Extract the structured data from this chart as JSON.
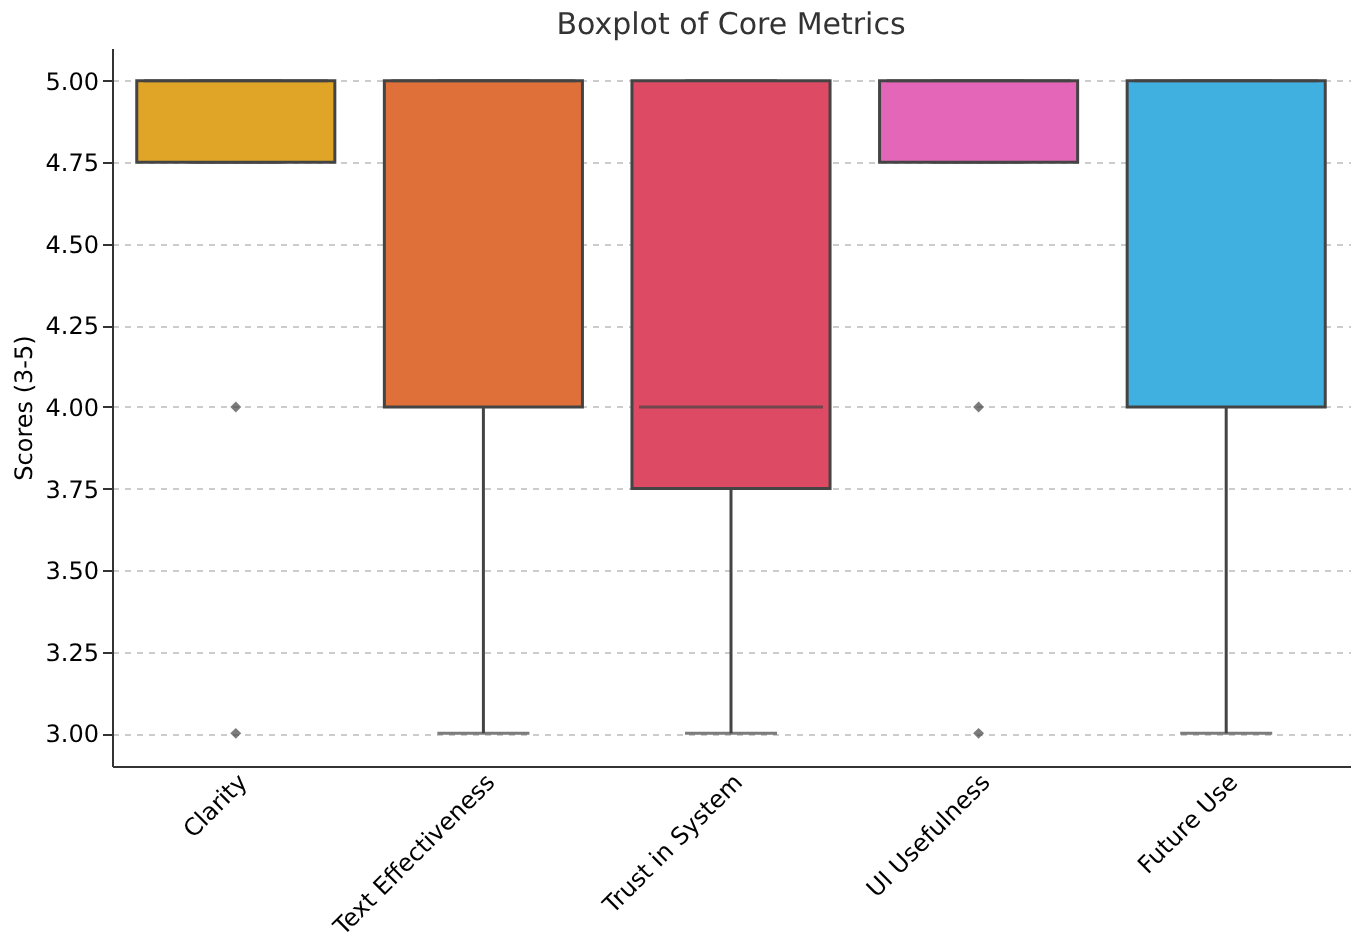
{
  "chart_data": {
    "type": "box",
    "title": "Boxplot of Core Metrics",
    "ylabel": "Scores (3-5)",
    "categories": [
      "Clarity",
      "Text Effectiveness",
      "Trust in System",
      "UI Usefulness",
      "Future Use"
    ],
    "boxes": [
      {
        "low": 4.75,
        "q1": 4.75,
        "median": 5,
        "q3": 5,
        "high": 5,
        "outliers": [
          4,
          3
        ]
      },
      {
        "low": 3,
        "q1": 4,
        "median": 5,
        "q3": 5,
        "high": 5
      },
      {
        "low": 3,
        "q1": 3.75,
        "median": 4,
        "q3": 5,
        "high": 5
      },
      {
        "low": 4.75,
        "q1": 4.75,
        "median": 5,
        "q3": 5,
        "high": 5,
        "outliers": [
          4,
          3
        ]
      },
      {
        "low": 3,
        "q1": 4,
        "median": 5,
        "q3": 5,
        "high": 5
      }
    ],
    "colors": [
      "#e0a526",
      "#e0703a",
      "#dd4a63",
      "#e466b8",
      "#40b0e0"
    ],
    "ylim": [
      2.9,
      5.1
    ],
    "yticks": [
      {
        "value": 3,
        "label": "3.00"
      },
      {
        "value": 3.25,
        "label": "3.25"
      },
      {
        "value": 3.5,
        "label": "3.50"
      },
      {
        "value": 3.75,
        "label": "3.75"
      },
      {
        "value": 4,
        "label": "4.00"
      },
      {
        "value": 4.25,
        "label": "4.25"
      },
      {
        "value": 4.5,
        "label": "4.50"
      },
      {
        "value": 4.75,
        "label": "4.75"
      },
      {
        "value": 5,
        "label": "5.00"
      }
    ],
    "grid": "y",
    "marker": "diamond"
  }
}
